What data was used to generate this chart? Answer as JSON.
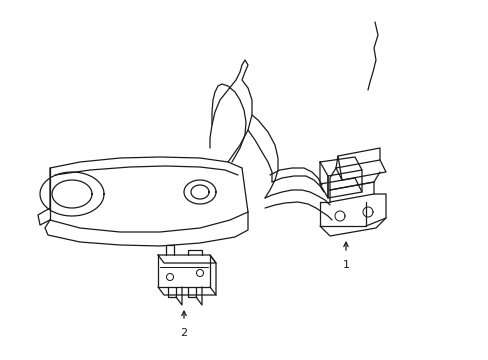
{
  "bg_color": "#ffffff",
  "line_color": "#1a1a1a",
  "line_width": 0.9,
  "fig_width": 4.89,
  "fig_height": 3.6,
  "dpi": 100
}
